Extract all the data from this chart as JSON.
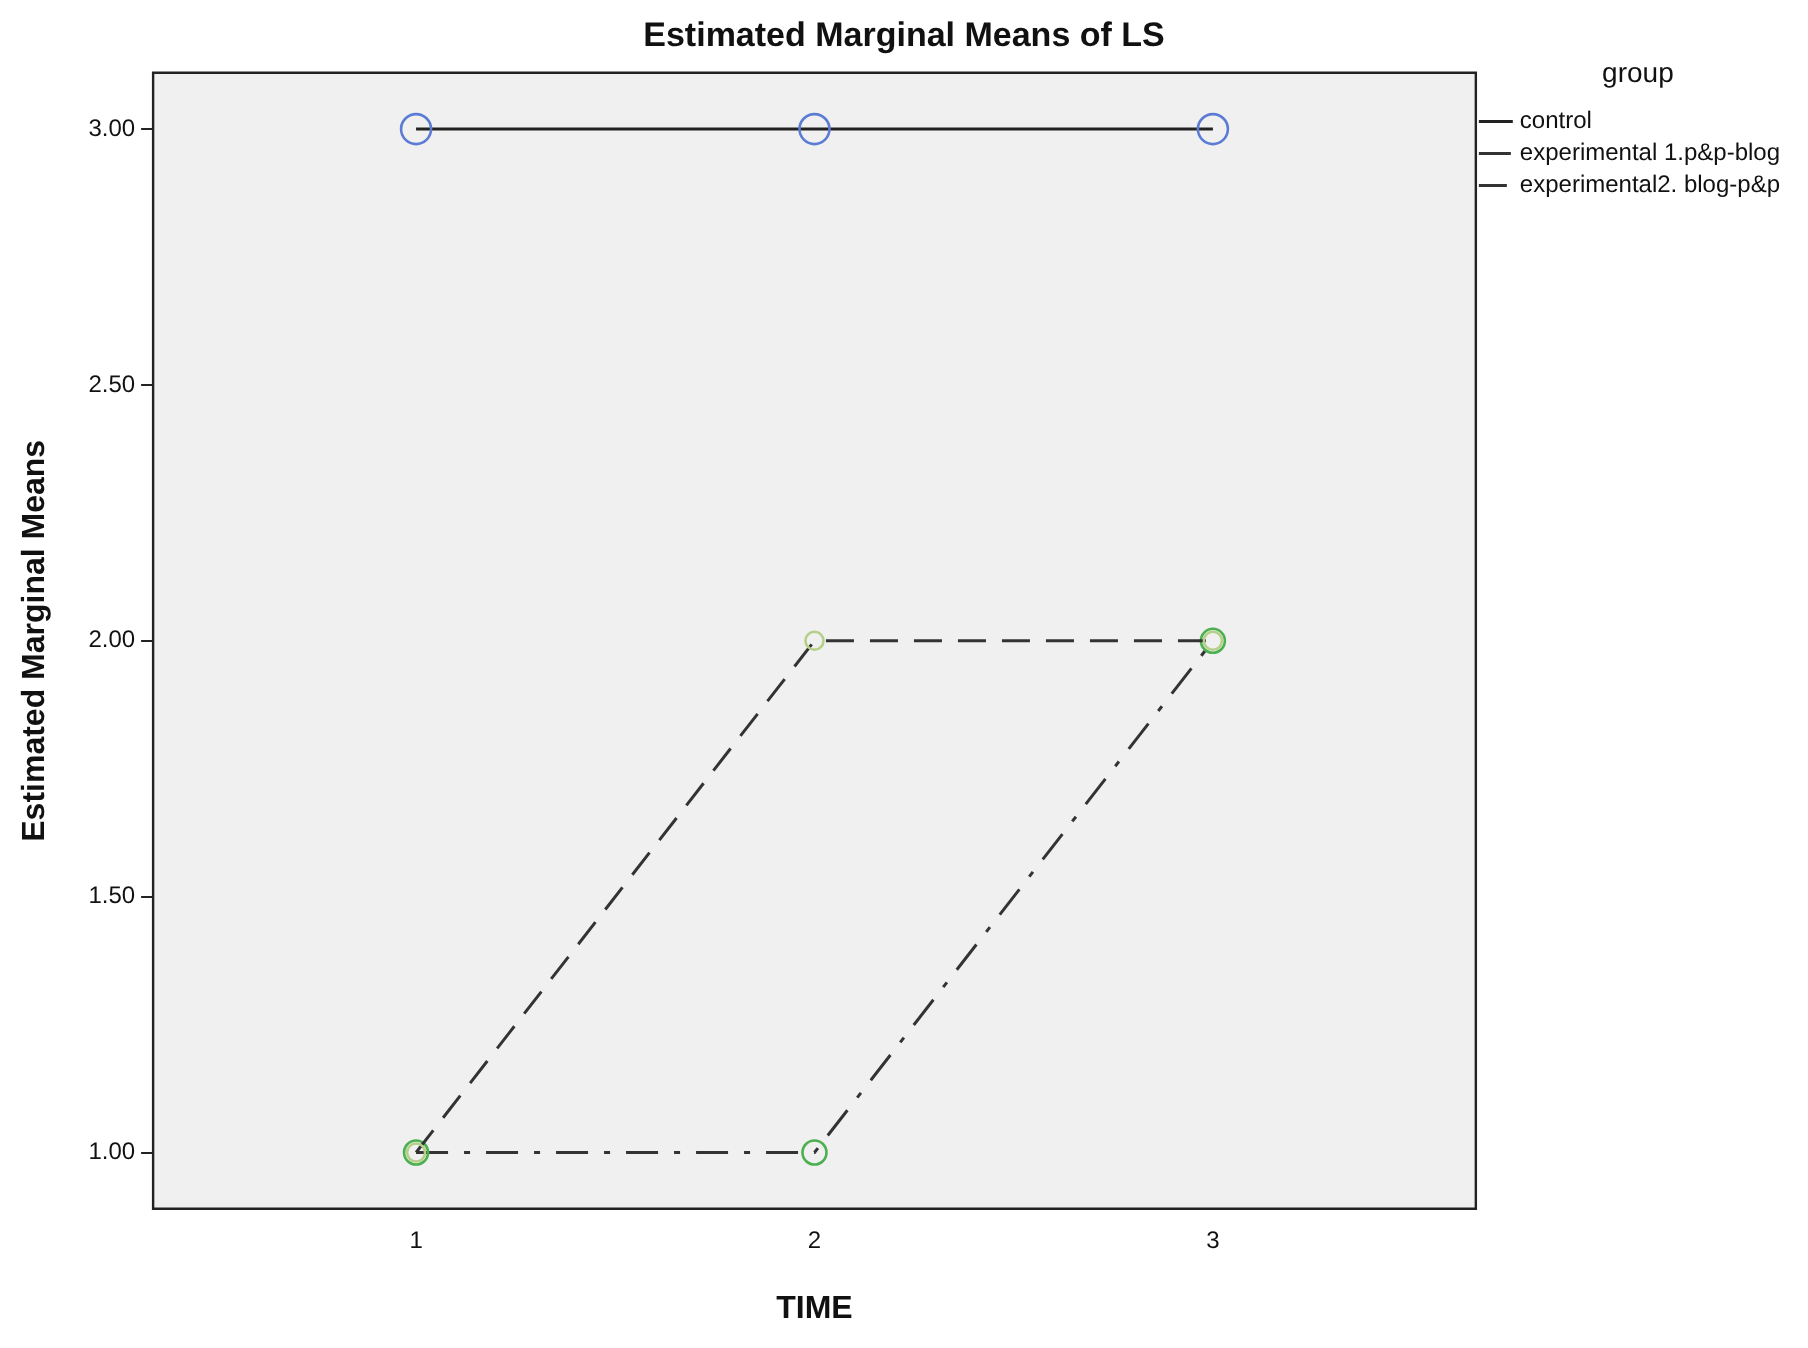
{
  "chart_data": {
    "type": "line",
    "title": "Estimated Marginal Means of LS",
    "xlabel": "TIME",
    "ylabel": "Estimated Marginal Means",
    "legend_title": "group",
    "legend": "top right",
    "grid": false,
    "marker": "circle",
    "x": [
      1,
      2,
      3
    ],
    "xlim": [
      0.34,
      3.66
    ],
    "xticks": [
      1,
      2,
      3
    ],
    "ylim": [
      0.89,
      3.11
    ],
    "yticks": [
      {
        "value": 1,
        "label": "1.00"
      },
      {
        "value": 1.5,
        "label": "1.50"
      },
      {
        "value": 2,
        "label": "2.00"
      },
      {
        "value": 2.5,
        "label": "2.50"
      },
      {
        "value": 3,
        "label": "3.00"
      }
    ],
    "series": [
      {
        "name": "control",
        "color": "#222222",
        "colors": [
          "#5b7bd5",
          "#5b7bd5",
          "#5b7bd5"
        ],
        "line_style": "solid",
        "values": [
          3,
          3,
          3
        ]
      },
      {
        "name": "experimental 1.p&p-blog",
        "color": "#333333",
        "colors": [
          "#4cb050",
          "#4cb050",
          "#4cb050"
        ],
        "line_style": "dashdot",
        "values": [
          1,
          1,
          2
        ]
      },
      {
        "name": "experimental2. blog-p&p",
        "color": "#333333",
        "colors": [
          "#b5cf88",
          "#b5cf88",
          "#b5cf88"
        ],
        "line_style": "dashed",
        "values": [
          1,
          2,
          2
        ]
      }
    ]
  }
}
